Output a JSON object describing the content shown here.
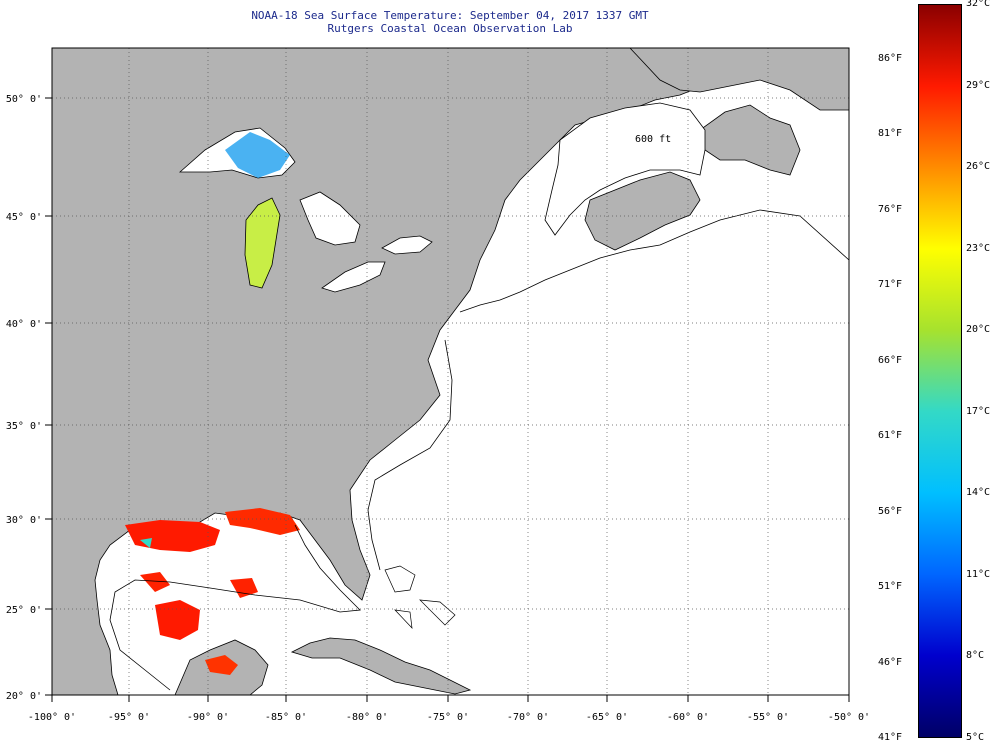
{
  "header": {
    "title": "NOAA-18 Sea Surface Temperature:  September 04, 2017 1337 GMT",
    "subtitle": "Rutgers Coastal Ocean Observation Lab"
  },
  "map": {
    "lon_labels": [
      "-100° 0'",
      "-95° 0'",
      "-90° 0'",
      "-85° 0'",
      "-80° 0'",
      "-75° 0'",
      "-70° 0'",
      "-65° 0'",
      "-60° 0'",
      "-55° 0'",
      "-50° 0'"
    ],
    "lat_labels": [
      "50° 0'",
      "45° 0'",
      "40° 0'",
      "35° 0'",
      "30° 0'",
      "25° 0'",
      "20° 0'"
    ],
    "contour_label": "600 ft",
    "colors": {
      "land": "#b3b3b3",
      "ocean_no_data": "#ffffff",
      "grid": "#555555",
      "coast": "#000000"
    }
  },
  "colorbar": {
    "celsius_labels": [
      "32°C",
      "29°C",
      "26°C",
      "23°C",
      "20°C",
      "17°C",
      "14°C",
      "11°C",
      "8°C",
      "5°C"
    ],
    "fahrenheit_labels": [
      "86°F",
      "81°F",
      "76°F",
      "71°F",
      "66°F",
      "61°F",
      "56°F",
      "51°F",
      "46°F",
      "41°F"
    ],
    "gradient": [
      "#8b0000",
      "#ff1a00",
      "#ff8c00",
      "#ffff00",
      "#a6e22e",
      "#33d9c7",
      "#00bfff",
      "#0066ff",
      "#0000cd",
      "#000066"
    ]
  }
}
